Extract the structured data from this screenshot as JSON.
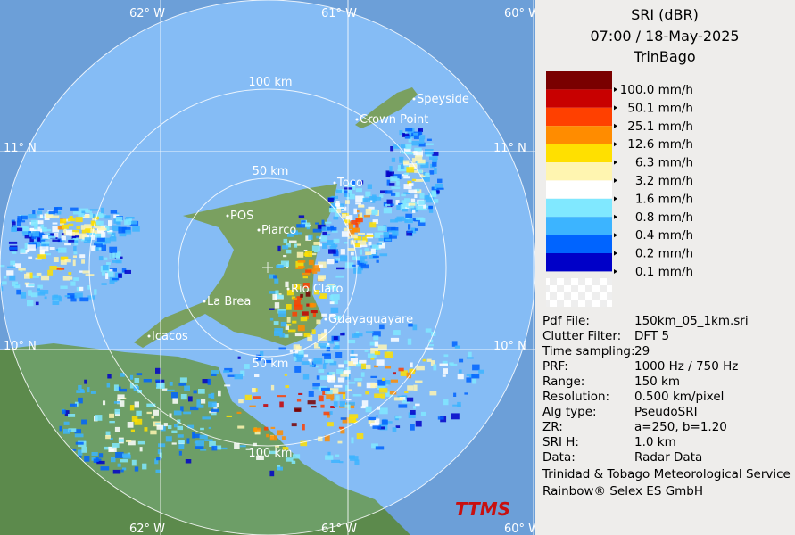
{
  "map": {
    "grid_top": [
      "62° W",
      "61° W",
      "60° W"
    ],
    "grid_bottom": [
      "62° W",
      "61° W",
      "60° W"
    ],
    "grid_left": [
      "11° N",
      "10° N"
    ],
    "grid_right": [
      "11° N",
      "10° N"
    ],
    "range_labels": [
      "100 km",
      "50 km",
      "50 km",
      "100 km"
    ],
    "places": [
      "Speyside",
      "Crown Point",
      "Toco",
      "Piarco",
      "POS",
      "Rio Claro",
      "La Brea",
      "Icacos",
      "Guayaguayare"
    ],
    "logo": "TTMS"
  },
  "panel": {
    "title": [
      "SRI (dBR)",
      "07:00 / 18-May-2025",
      "TrinBago"
    ],
    "legend": [
      {
        "label": "100.0 mm/h",
        "color": "#7a0000"
      },
      {
        "label": "50.1 mm/h",
        "color": "#c80000"
      },
      {
        "label": "25.1 mm/h",
        "color": "#ff4000"
      },
      {
        "label": "12.6 mm/h",
        "color": "#ff8c00"
      },
      {
        "label": "6.3 mm/h",
        "color": "#ffe000"
      },
      {
        "label": "3.2 mm/h",
        "color": "#fff5b0"
      },
      {
        "label": "1.6 mm/h",
        "color": "#ffffff"
      },
      {
        "label": "0.8 mm/h",
        "color": "#80e8ff"
      },
      {
        "label": "0.4 mm/h",
        "color": "#3cb4ff"
      },
      {
        "label": "0.2 mm/h",
        "color": "#0064ff"
      },
      {
        "label": "0.1 mm/h",
        "color": "#0000c8"
      }
    ],
    "info": [
      [
        "Pdf File:",
        "150km_05_1km.sri"
      ],
      [
        "Clutter Filter:",
        "DFT 5"
      ],
      [
        "Time sampling:",
        "29"
      ],
      [
        "PRF:",
        "1000 Hz / 750 Hz"
      ],
      [
        "Range:",
        "150 km"
      ],
      [
        "Resolution:",
        "0.500 km/pixel"
      ],
      [
        "Alg type:",
        "PseudoSRI"
      ],
      [
        "ZR:",
        "a=250, b=1.20"
      ],
      [
        "SRI H:",
        "1.0 km"
      ],
      [
        "Data:",
        "Radar Data"
      ]
    ],
    "credits": [
      "Trinidad & Tobago Meteorological Service",
      "Rainbow® Selex ES GmbH"
    ]
  }
}
